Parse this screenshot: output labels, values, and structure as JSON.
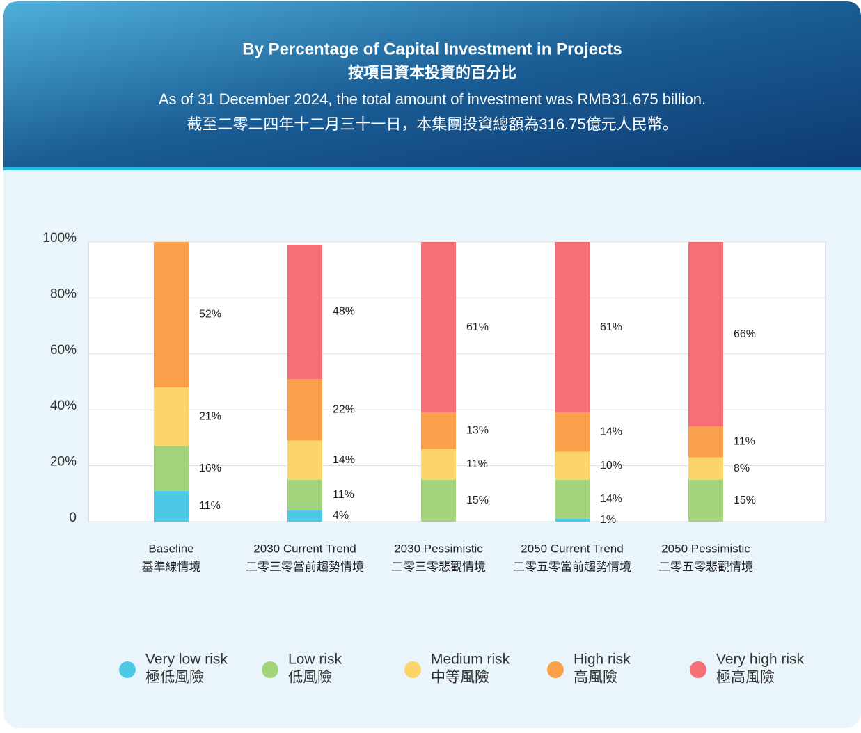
{
  "chart_data": {
    "type": "stacked_bar",
    "title": "By Percentage of Capital Investment in Projects",
    "title_zh": "按項目資本投資的百分比",
    "subtitle": "As of 31 December 2024, the total amount of investment was RMB31.675 billion.",
    "subtitle_zh": "截至二零二四年十二月三十一日，本集團投資總額為316.75億元人民幣。",
    "categories": [
      "Baseline",
      "2030 Current Trend",
      "2030 Pessimistic",
      "2050 Current Trend",
      "2050 Pessimistic"
    ],
    "categories_zh": [
      "基準線情境",
      "二零三零當前趨勢情境",
      "二零三零悲觀情境",
      "二零五零當前趨勢情境",
      "二零五零悲觀情境"
    ],
    "series": [
      {
        "name": "Very low risk",
        "name_zh": "極低風險",
        "color": "#4dc9e6",
        "values": [
          11,
          4,
          null,
          1,
          null
        ],
        "value_labels": [
          "11%",
          "4%",
          null,
          "1%",
          null
        ]
      },
      {
        "name": "Low risk",
        "name_zh": "低風險",
        "color": "#a3d47c",
        "values": [
          16,
          11,
          15,
          14,
          15
        ],
        "value_labels": [
          "16%",
          "11%",
          "15%",
          "14%",
          "15%"
        ]
      },
      {
        "name": "Medium risk",
        "name_zh": "中等風險",
        "color": "#fbd46a",
        "values": [
          21,
          14,
          11,
          10,
          8
        ],
        "value_labels": [
          "21%",
          "14%",
          "11%",
          "10%",
          "8%"
        ]
      },
      {
        "name": "High risk",
        "name_zh": "高風險",
        "color": "#fba04a",
        "values": [
          52,
          22,
          13,
          14,
          11
        ],
        "value_labels": [
          "52%",
          "22%",
          "13%",
          "14%",
          "11%"
        ]
      },
      {
        "name": "Very high risk",
        "name_zh": "極高風險",
        "color": "#f56f75",
        "values": [
          null,
          48,
          61,
          61,
          66
        ],
        "value_labels": [
          null,
          "48%",
          "61%",
          "61%",
          "66%"
        ]
      }
    ],
    "ylim": [
      0,
      100
    ],
    "yticks": [
      0,
      {
        "value": 20,
        "label": "20%"
      },
      {
        "value": 40,
        "label": "40%"
      },
      {
        "value": 60,
        "label": "60%"
      },
      {
        "value": 80,
        "label": "80%"
      },
      {
        "value": 100,
        "label": "100%"
      }
    ],
    "grid": true
  }
}
